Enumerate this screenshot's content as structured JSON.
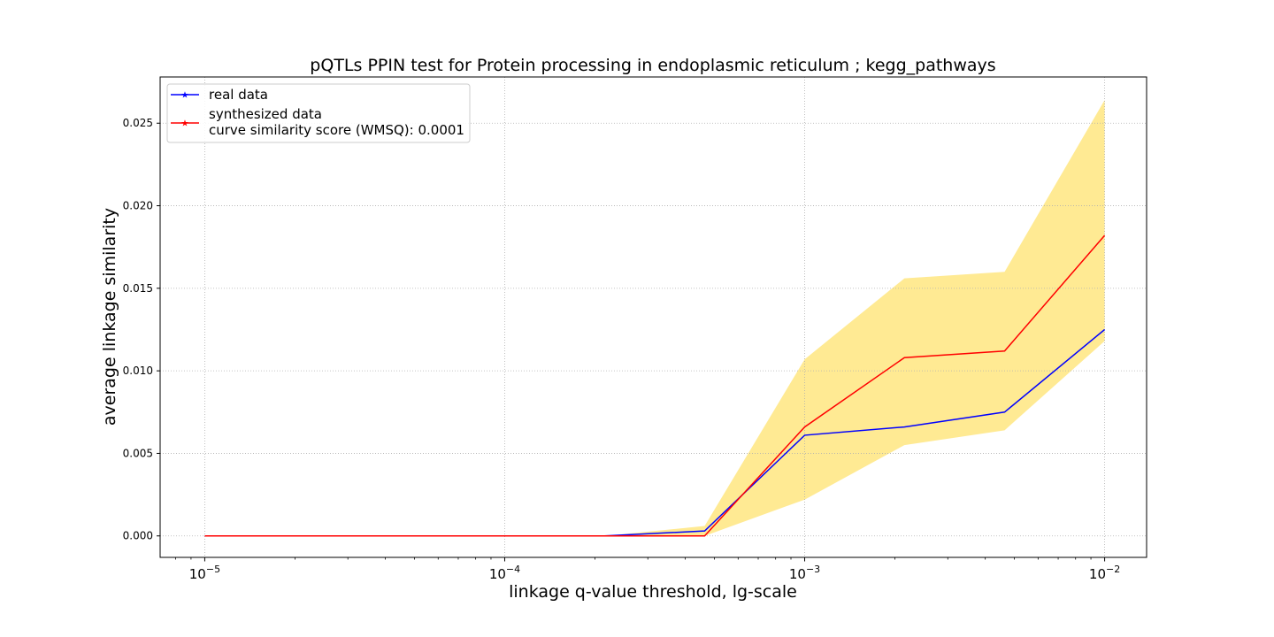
{
  "chart_data": {
    "type": "line",
    "title": "pQTLs PPIN test for Protein processing in endoplasmic reticulum ; kegg_pathways",
    "xlabel": "linkage q-value threshold, lg-scale",
    "ylabel": "average linkage similarity",
    "x_scale": "log",
    "xlim": [
      7.1e-06,
      0.0138
    ],
    "ylim": [
      -0.0013,
      0.0278
    ],
    "x": [
      1e-05,
      2.15e-05,
      4.64e-05,
      0.0001,
      0.000215,
      0.000464,
      0.001,
      0.00215,
      0.00464,
      0.01
    ],
    "xticks": [
      {
        "value": 1e-05,
        "base": "10",
        "exp": "−5"
      },
      {
        "value": 0.0001,
        "base": "10",
        "exp": "−4"
      },
      {
        "value": 0.001,
        "base": "10",
        "exp": "−3"
      },
      {
        "value": 0.01,
        "base": "10",
        "exp": "−2"
      }
    ],
    "yticks": [
      "0.000",
      "0.005",
      "0.010",
      "0.015",
      "0.020",
      "0.025"
    ],
    "ytick_values": [
      0,
      0.005,
      0.01,
      0.015,
      0.02,
      0.025
    ],
    "grid": true,
    "legend_position": "upper left",
    "series": [
      {
        "name": "real data",
        "color": "#0000ff",
        "values": [
          0,
          0,
          0,
          0,
          0,
          0.0003,
          0.0061,
          0.0066,
          0.0075,
          0.0125
        ]
      },
      {
        "name": "synthesized data",
        "color": "#ff0000",
        "values": [
          0,
          0,
          0,
          0,
          0,
          0,
          0.0066,
          0.0108,
          0.0112,
          0.0182
        ]
      }
    ],
    "band": {
      "color": "#ffe680",
      "upper": [
        0,
        0,
        0,
        0,
        0,
        0.0006,
        0.0107,
        0.0156,
        0.016,
        0.0264
      ],
      "lower": [
        0,
        0,
        0,
        0,
        0,
        0,
        0.0022,
        0.0055,
        0.0064,
        0.0118
      ]
    },
    "legend_extra": "curve similarity score (WMSQ): 0.0001"
  }
}
